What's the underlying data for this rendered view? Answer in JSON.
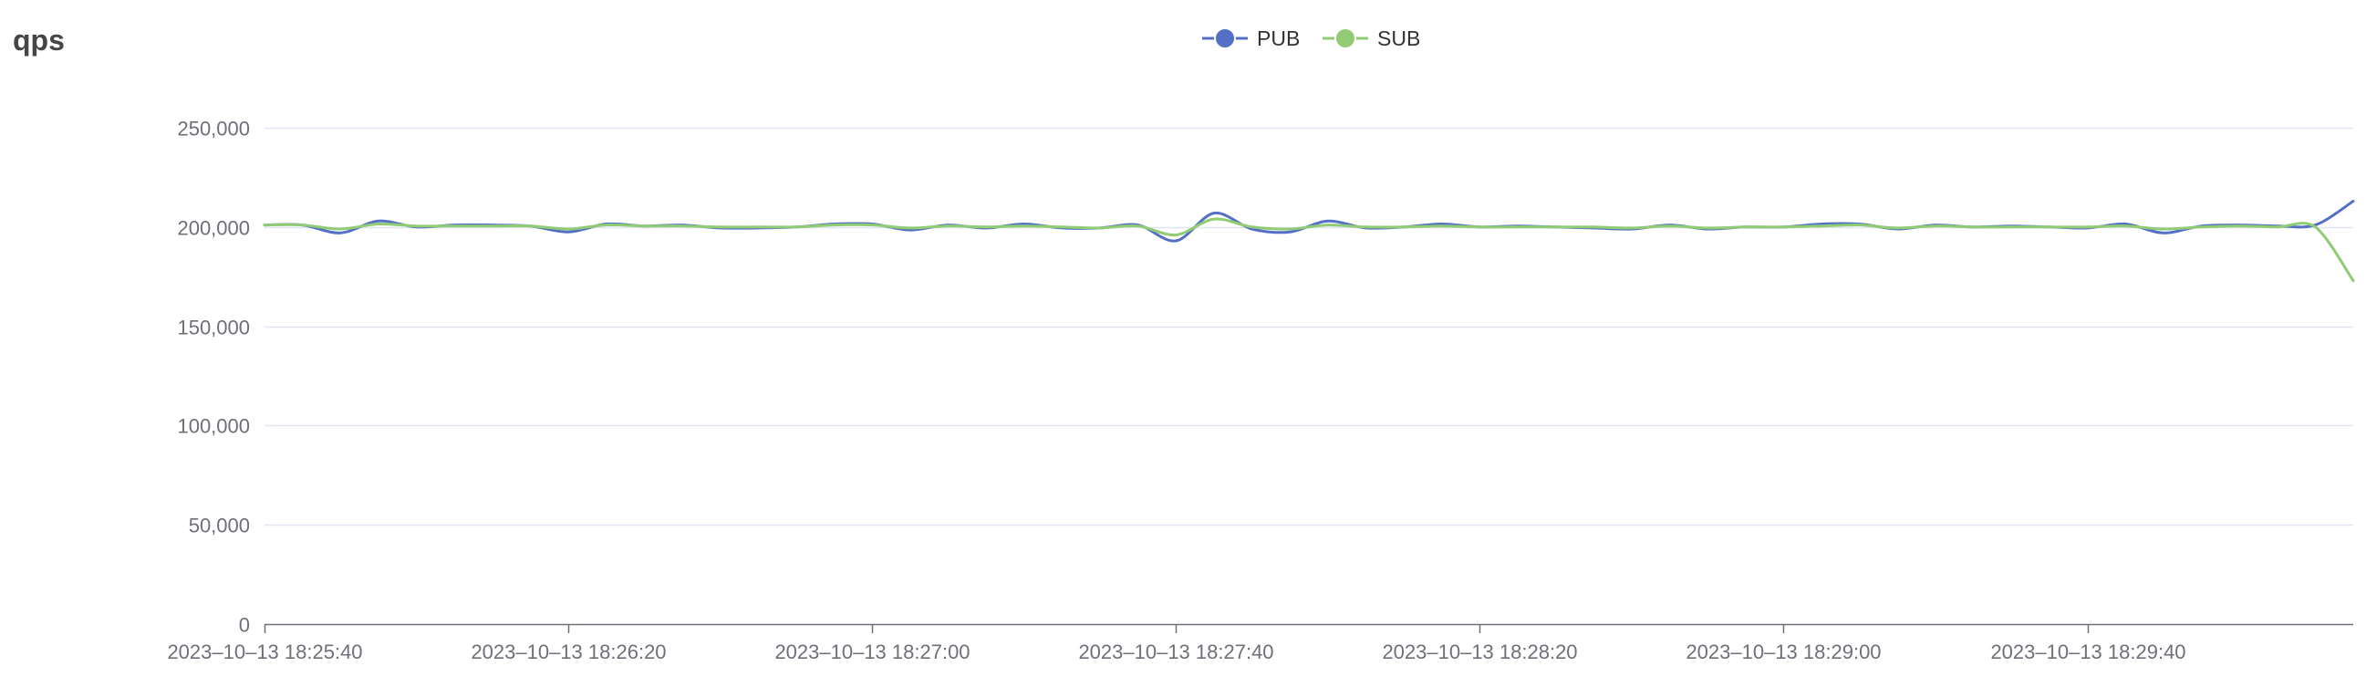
{
  "panel": {
    "title": "qps"
  },
  "chart_data": {
    "type": "line",
    "title": "",
    "xlabel": "",
    "ylabel": "",
    "ylim": [
      0,
      250000
    ],
    "y_ticks": [
      0,
      50000,
      100000,
      150000,
      200000,
      250000
    ],
    "y_tick_labels": [
      "0",
      "50,000",
      "100,000",
      "150,000",
      "200,000",
      "250,000"
    ],
    "x_ticks": [
      "2023-10-13 18:25:40",
      "2023-10-13 18:26:20",
      "2023-10-13 18:27:00",
      "2023-10-13 18:27:40",
      "2023-10-13 18:28:20",
      "2023-10-13 18:29:00",
      "2023-10-13 18:29:40"
    ],
    "x_start": "2023-10-13 18:25:40",
    "x_end": "2023-10-13 18:30:15",
    "x_step_seconds": 5,
    "grid": true,
    "legend_position": "top-center",
    "series": [
      {
        "name": "PUB",
        "color": "#5470c6",
        "values": [
          201000,
          201000,
          197000,
          203000,
          200000,
          201000,
          201000,
          200500,
          197500,
          201500,
          200500,
          201000,
          199500,
          199500,
          200000,
          201500,
          201500,
          198500,
          201000,
          199500,
          201500,
          199500,
          199500,
          201000,
          193000,
          207000,
          199000,
          197500,
          203000,
          199500,
          200000,
          201500,
          200000,
          200500,
          200000,
          199500,
          199000,
          201000,
          199000,
          200000,
          200000,
          201500,
          201500,
          199000,
          201000,
          200000,
          200500,
          200000,
          199500,
          201500,
          197000,
          200500,
          201000,
          200500,
          201000,
          213000
        ]
      },
      {
        "name": "SUB",
        "color": "#91cc75",
        "values": [
          201000,
          201000,
          199000,
          201500,
          200500,
          200500,
          200500,
          200500,
          199000,
          201000,
          200500,
          200500,
          200000,
          200000,
          200000,
          201000,
          201000,
          199500,
          200500,
          200000,
          200500,
          200000,
          199500,
          200500,
          196000,
          204000,
          200000,
          199000,
          201000,
          200000,
          200000,
          200500,
          200000,
          200000,
          200000,
          200000,
          199500,
          200500,
          199500,
          200000,
          200000,
          200500,
          201000,
          199500,
          200500,
          200000,
          200000,
          200000,
          200000,
          200500,
          199000,
          200000,
          200500,
          200000,
          200000,
          173000
        ]
      }
    ]
  }
}
